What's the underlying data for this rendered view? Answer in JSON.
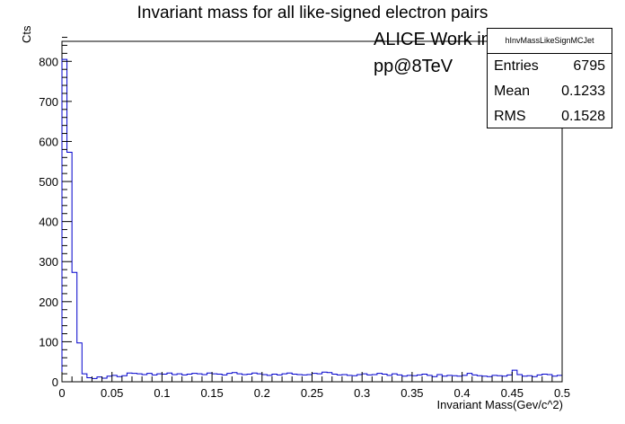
{
  "chart_data": {
    "type": "histogram",
    "title": "Invariant mass for all like-signed electron pairs",
    "xlabel": "Invariant Mass(Gev/c^2)",
    "ylabel": "Cts",
    "xlim": [
      0,
      0.5
    ],
    "ylim": [
      0,
      850
    ],
    "bin_width": 0.005,
    "x_ticks": [
      "0",
      "0.05",
      "0.1",
      "0.15",
      "0.2",
      "0.25",
      "0.3",
      "0.35",
      "0.4",
      "0.45",
      "0.5"
    ],
    "y_ticks": [
      "0",
      "100",
      "200",
      "300",
      "400",
      "500",
      "600",
      "700",
      "800"
    ],
    "values": [
      805,
      573,
      273,
      97,
      20,
      10,
      8,
      12,
      9,
      14,
      16,
      13,
      15,
      22,
      21,
      20,
      18,
      21,
      17,
      20,
      19,
      22,
      18,
      20,
      17,
      19,
      21,
      20,
      18,
      22,
      20,
      19,
      17,
      21,
      23,
      20,
      18,
      19,
      22,
      20,
      18,
      16,
      19,
      17,
      20,
      22,
      19,
      18,
      17,
      18,
      21,
      20,
      24,
      23,
      19,
      17,
      18,
      16,
      15,
      18,
      20,
      17,
      18,
      21,
      19,
      16,
      20,
      17,
      14,
      16,
      15,
      17,
      19,
      16,
      13,
      18,
      14,
      16,
      15,
      14,
      16,
      21,
      17,
      15,
      14,
      13,
      16,
      15,
      14,
      17,
      29,
      18,
      14,
      15,
      13,
      17,
      19,
      18,
      14,
      16
    ],
    "color": "#0000cc",
    "annotations": [
      "ALICE Work in Progress",
      "pp@8TeV"
    ],
    "stats_box": {
      "name": "hInvMassLikeSignMCJet",
      "entries_label": "Entries",
      "entries": "6795",
      "mean_label": "Mean",
      "mean": "0.1233",
      "rms_label": "RMS",
      "rms": "0.1528"
    }
  }
}
